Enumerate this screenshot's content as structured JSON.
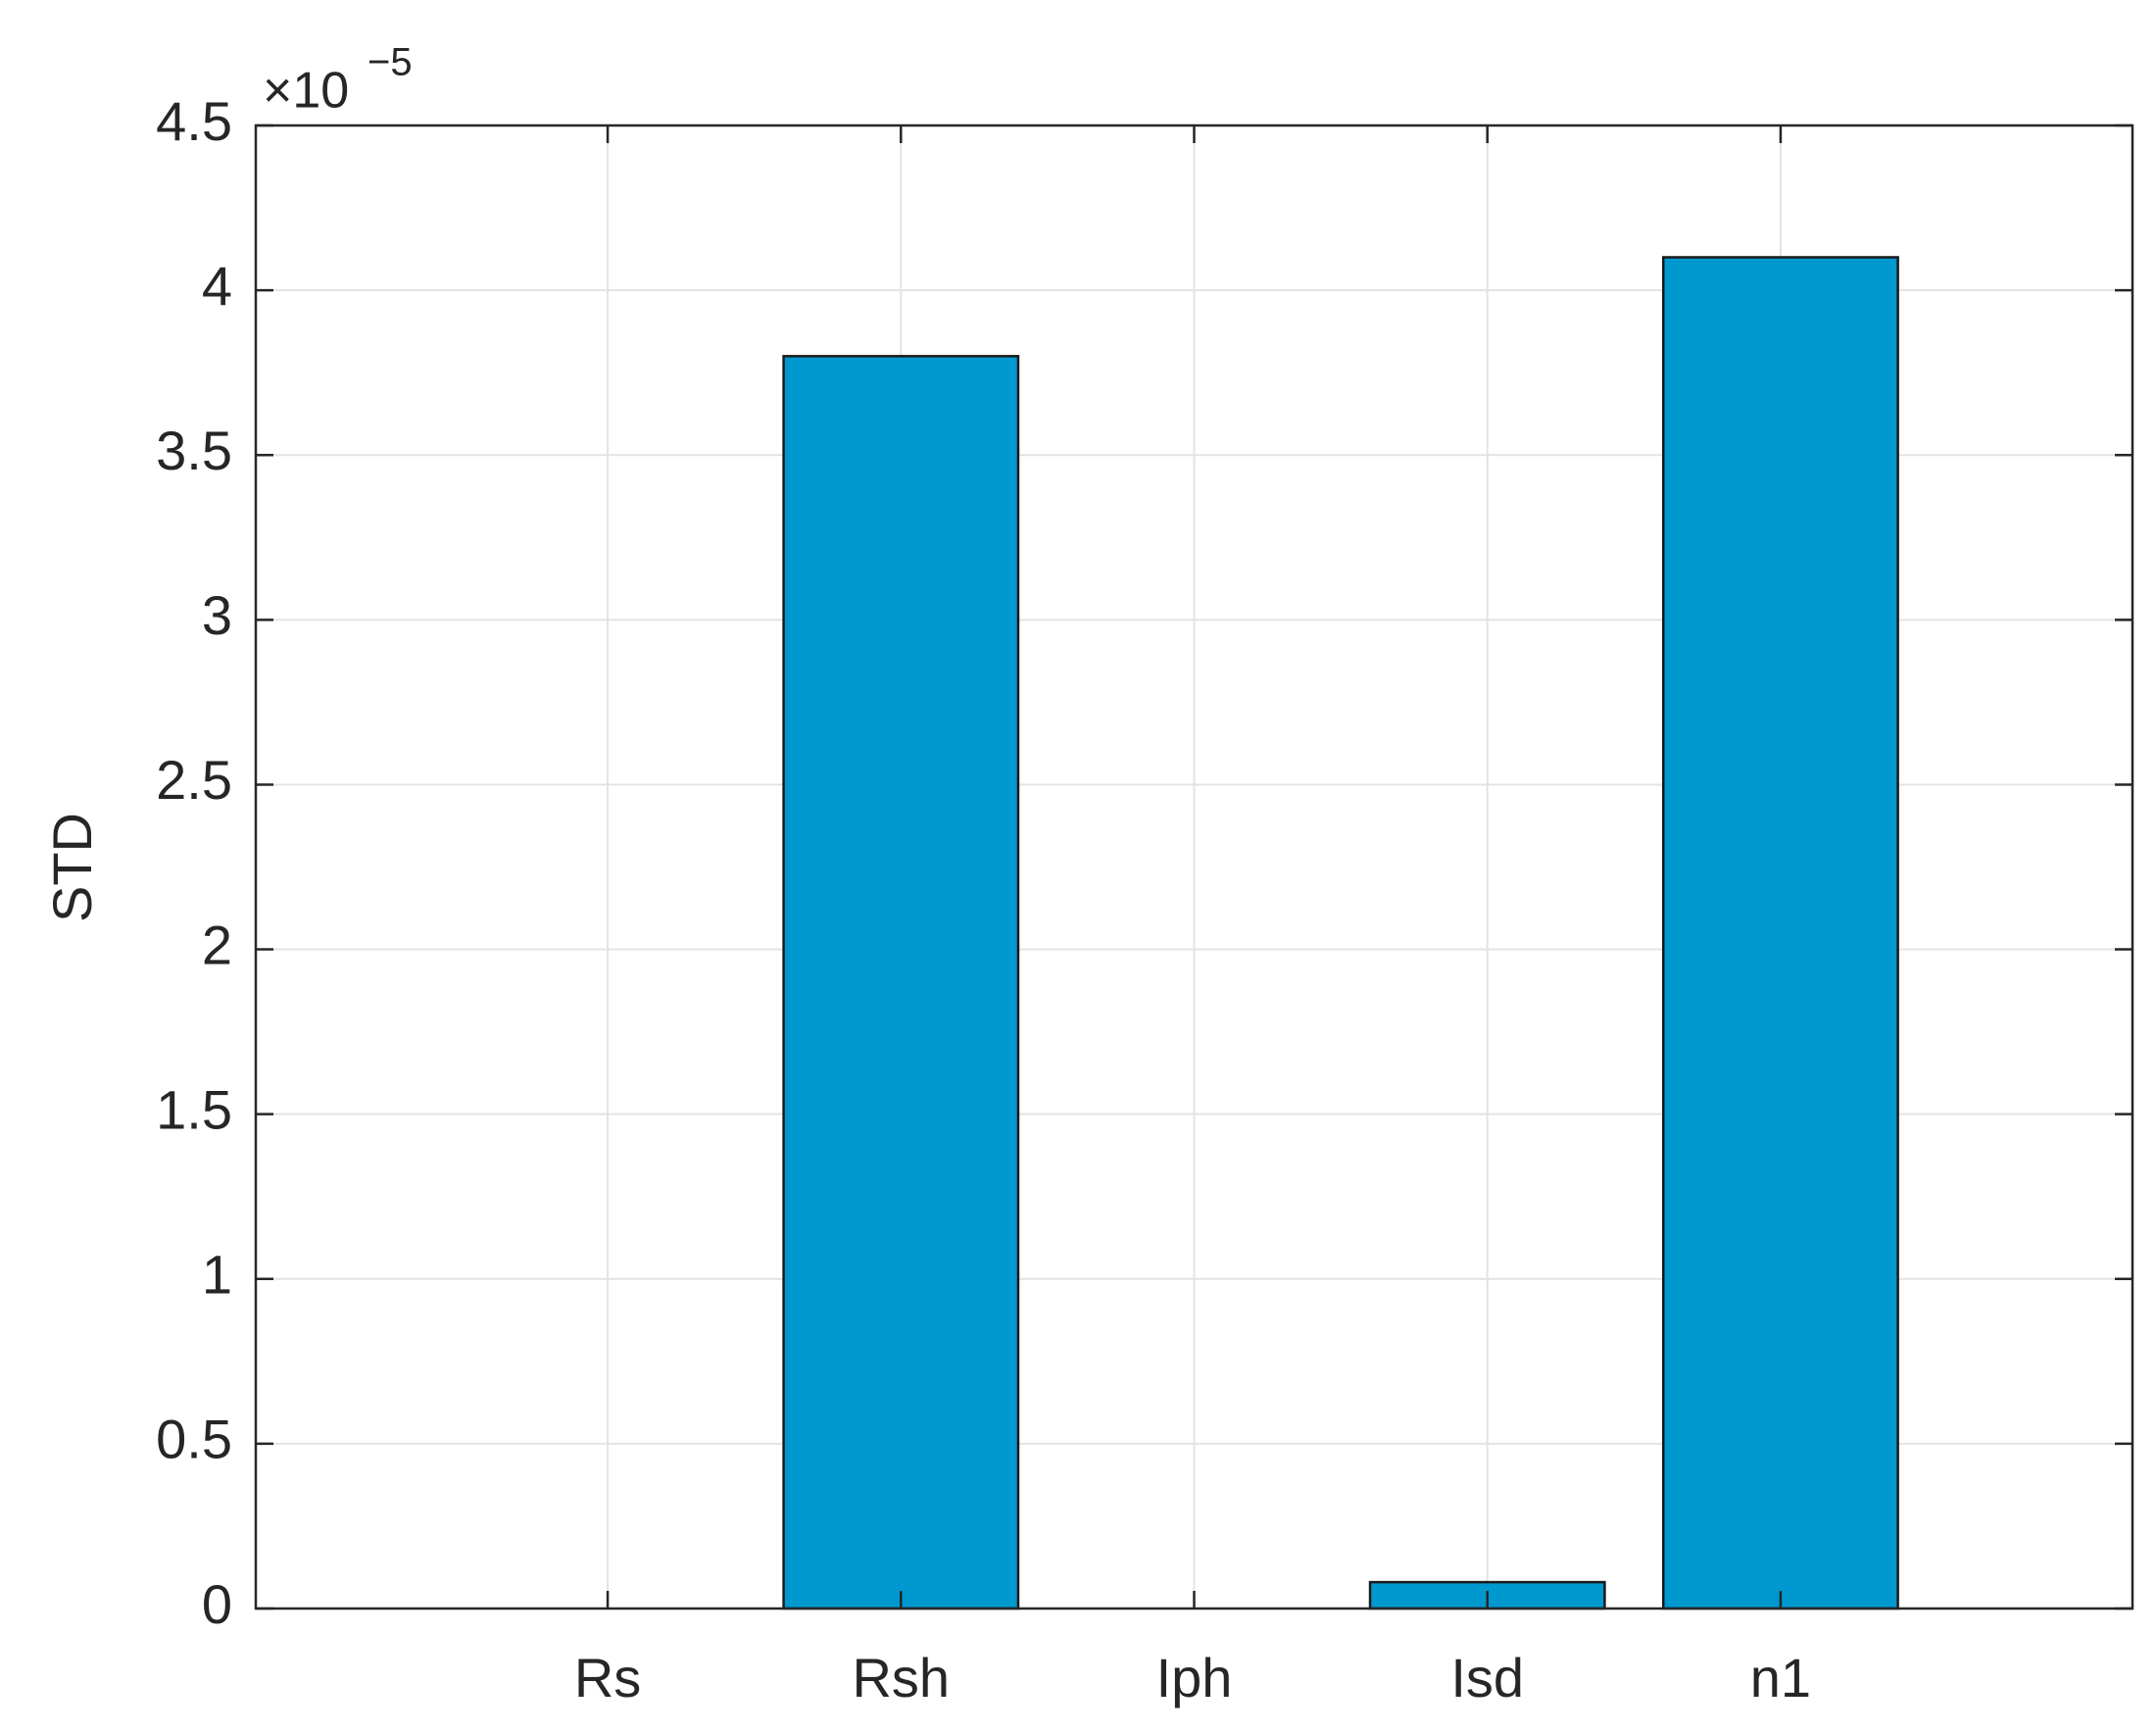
{
  "chart_data": {
    "type": "bar",
    "categories": [
      "Rs",
      "Rsh",
      "Iph",
      "Isd",
      "n1"
    ],
    "values": [
      0,
      3.8,
      0,
      0.08,
      4.1
    ],
    "color": "#0099cf",
    "ylabel": "STD",
    "y_exponent": {
      "base": "×10",
      "power": "−5"
    },
    "ylim": [
      0,
      4.5
    ],
    "yticks": [
      0,
      0.5,
      1,
      1.5,
      2,
      2.5,
      3,
      3.5,
      4,
      4.5
    ],
    "grid": true
  }
}
